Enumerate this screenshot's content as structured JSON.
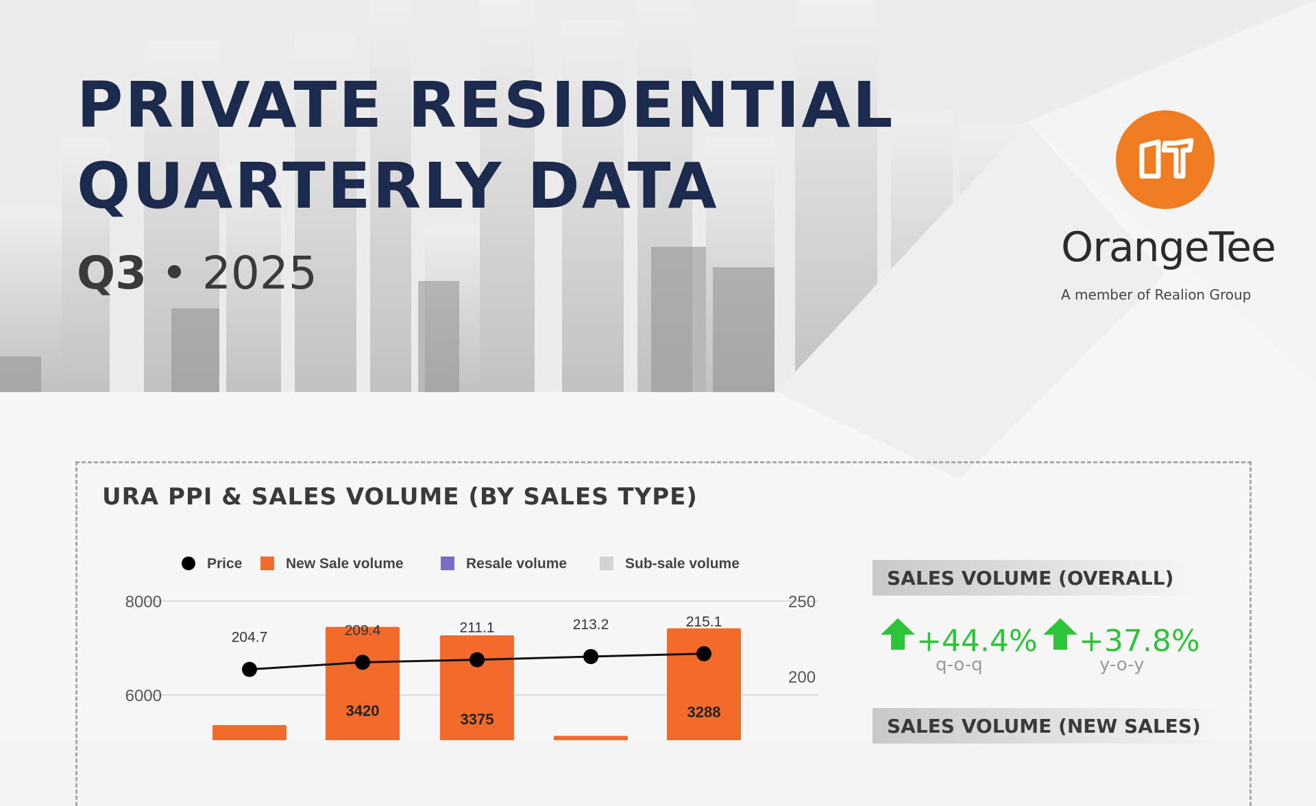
{
  "header": {
    "title_line1": "PRIVATE RESIDENTIAL",
    "title_line2": "QUARTERLY DATA",
    "quarter": "Q3",
    "separator": "•",
    "year": "2025"
  },
  "brand": {
    "name": "OrangeTee",
    "logo_text": "OT",
    "tagline": "A member of Realion Group",
    "color": "#f07c22"
  },
  "kpis": {
    "overall": {
      "heading": "SALES VOLUME (OVERALL)",
      "qoq": "+44.4%",
      "qoq_label": "q-o-q",
      "yoy": "+37.8%",
      "yoy_label": "y-o-y",
      "icon": "arrow-up-icon",
      "color": "#2ec43a"
    },
    "new_sales": {
      "heading": "SALES VOLUME (NEW SALES)"
    }
  },
  "chart_data": {
    "type": "bar",
    "title": "URA PPI & SALES VOLUME (BY SALES TYPE)",
    "legend": [
      "Price",
      "New Sale volume",
      "Resale volume",
      "Sub-sale volume"
    ],
    "legend_placement": "top",
    "colors": {
      "price": "#000000",
      "new_sale": "#f26b2a",
      "resale": "#7a6bc4",
      "sub_sale": "#d3d3d3"
    },
    "y_left_ticks": [
      "8000",
      "6000"
    ],
    "y_right_ticks": [
      "250",
      "200"
    ],
    "y_left_range_visible": [
      6000,
      8000
    ],
    "y_right_range_visible": [
      200,
      250
    ],
    "grid": true,
    "stack_totals": [
      5360,
      7450,
      7270,
      5130,
      7420
    ],
    "series": [
      {
        "name": "Price",
        "type": "line",
        "values": [
          204.7,
          209.4,
          211.1,
          213.2,
          215.1
        ],
        "labels": [
          "204.7",
          "209.4",
          "211.1",
          "213.2",
          "215.1"
        ]
      },
      {
        "name": "New Sale volume",
        "type": "bar",
        "labels": [
          "",
          "3420",
          "3375",
          "",
          "3288"
        ]
      }
    ]
  }
}
